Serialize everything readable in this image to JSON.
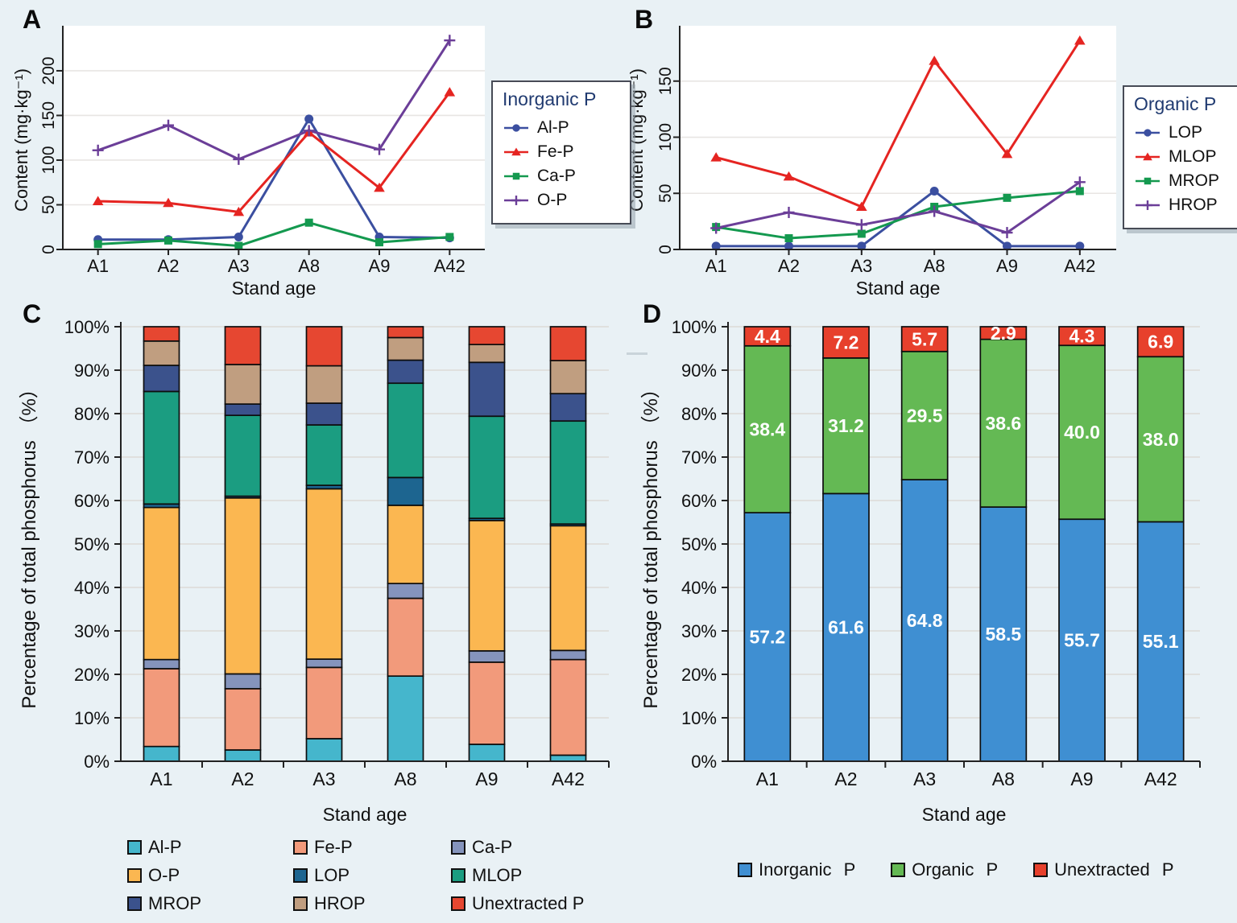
{
  "figure_background": "#e9f1f5",
  "plot_background": "#ffffff",
  "chart_data": [
    {
      "type": "line",
      "panel_label": "A",
      "legend_title": "Inorganic P",
      "legend_position": "right",
      "categories": [
        "A1",
        "A2",
        "A3",
        "A8",
        "A9",
        "A42"
      ],
      "xlabel": "Stand age",
      "ylabel": "Content (mg·kg⁻¹)",
      "ylim": [
        0,
        245
      ],
      "ytick_values": [
        0,
        50,
        100,
        150,
        200
      ],
      "ytick_labels": [
        "0",
        "50",
        "100",
        "150",
        "200"
      ],
      "grid": true,
      "series": [
        {
          "name": "Al-P",
          "marker": "circle",
          "color": "#3b4fa0",
          "values": [
            11,
            11,
            14,
            146,
            14,
            13
          ]
        },
        {
          "name": "Fe-P",
          "marker": "triangle",
          "color": "#e52421",
          "values": [
            54,
            52,
            42,
            131,
            69,
            176
          ]
        },
        {
          "name": "Ca-P",
          "marker": "square",
          "color": "#14994f",
          "values": [
            6,
            10,
            4,
            30,
            8,
            14
          ]
        },
        {
          "name": "O-P",
          "marker": "plus",
          "color": "#6b3e98",
          "values": [
            111,
            139,
            101,
            133,
            112,
            234
          ]
        }
      ]
    },
    {
      "type": "line",
      "panel_label": "B",
      "legend_title": "Organic P",
      "legend_position": "right",
      "categories": [
        "A1",
        "A2",
        "A3",
        "A8",
        "A9",
        "A42"
      ],
      "xlabel": "Stand age",
      "ylabel": "Content (mg·kg⁻¹)",
      "ylim": [
        0,
        195
      ],
      "ytick_values": [
        0,
        50,
        100,
        150
      ],
      "ytick_labels": [
        "0",
        "50",
        "100",
        "150"
      ],
      "grid": true,
      "series": [
        {
          "name": "LOP",
          "marker": "circle",
          "color": "#3b4fa0",
          "values": [
            3,
            3,
            3,
            52,
            3,
            3
          ]
        },
        {
          "name": "MLOP",
          "marker": "triangle",
          "color": "#e52421",
          "values": [
            82,
            65,
            38,
            168,
            85,
            186
          ]
        },
        {
          "name": "MROP",
          "marker": "square",
          "color": "#14994f",
          "values": [
            20,
            10,
            14,
            38,
            46,
            52
          ]
        },
        {
          "name": "HROP",
          "marker": "plus",
          "color": "#6b3e98",
          "values": [
            19,
            33,
            22,
            34,
            15,
            60
          ]
        }
      ]
    },
    {
      "type": "bar",
      "stacked": true,
      "panel_label": "C",
      "categories": [
        "A1",
        "A2",
        "A3",
        "A8",
        "A9",
        "A42"
      ],
      "xlabel": "Stand age",
      "ylabel": "Percentage of total phosphorus （%）",
      "ylim": [
        0,
        100
      ],
      "ytick_values": [
        0,
        10,
        20,
        30,
        40,
        50,
        60,
        70,
        80,
        90,
        100
      ],
      "ytick_labels": [
        "0%",
        "10%",
        "20%",
        "30%",
        "40%",
        "50%",
        "60%",
        "70%",
        "80%",
        "90%",
        "100%"
      ],
      "grid": true,
      "legend_position": "bottom-grid",
      "series": [
        {
          "name": "Al-P",
          "color": "#45b6cc",
          "values": [
            3.4,
            2.6,
            5.2,
            19.6,
            3.9,
            1.4
          ]
        },
        {
          "name": "Fe-P",
          "color": "#f29a7b",
          "values": [
            17.9,
            14.1,
            16.4,
            17.9,
            18.9,
            22.0
          ]
        },
        {
          "name": "Ca-P",
          "color": "#8594bc",
          "values": [
            2.1,
            3.4,
            1.9,
            3.4,
            2.6,
            2.1
          ]
        },
        {
          "name": "O-P",
          "color": "#fbb751",
          "values": [
            35.0,
            40.5,
            39.2,
            18.0,
            30.0,
            28.7
          ]
        },
        {
          "name": "LOP",
          "color": "#1d6590",
          "values": [
            0.8,
            0.4,
            0.8,
            6.4,
            0.5,
            0.4
          ]
        },
        {
          "name": "MLOP",
          "color": "#1b9d81",
          "values": [
            25.9,
            18.6,
            13.9,
            21.7,
            23.5,
            23.7
          ]
        },
        {
          "name": "MROP",
          "color": "#3b528c",
          "values": [
            6.0,
            2.6,
            5.0,
            5.3,
            12.4,
            6.3
          ]
        },
        {
          "name": "HROP",
          "color": "#c09e80",
          "values": [
            5.6,
            9.1,
            8.6,
            5.2,
            4.1,
            7.6
          ]
        },
        {
          "name": "Unextracted P",
          "color": "#e64731",
          "values": [
            3.3,
            8.7,
            9.0,
            2.5,
            4.1,
            7.8
          ]
        }
      ]
    },
    {
      "type": "bar",
      "stacked": true,
      "panel_label": "D",
      "categories": [
        "A1",
        "A2",
        "A3",
        "A8",
        "A9",
        "A42"
      ],
      "xlabel": "Stand age",
      "ylabel": "Percentage of total phosphorus （%）",
      "ylim": [
        0,
        100
      ],
      "ytick_values": [
        0,
        10,
        20,
        30,
        40,
        50,
        60,
        70,
        80,
        90,
        100
      ],
      "ytick_labels": [
        "0%",
        "10%",
        "20%",
        "30%",
        "40%",
        "50%",
        "60%",
        "70%",
        "80%",
        "90%",
        "100%"
      ],
      "grid": true,
      "show_segment_labels": true,
      "segment_label_color": "#ffffff",
      "legend_position": "bottom-row",
      "series": [
        {
          "name": "Inorganic P",
          "color": "#3f8fd2",
          "values": [
            57.2,
            61.6,
            64.8,
            58.5,
            55.7,
            55.1
          ],
          "value_labels": [
            "57.2",
            "61.6",
            "64.8",
            "58.5",
            "55.7",
            "55.1"
          ]
        },
        {
          "name": "Organic P",
          "color": "#64b954",
          "values": [
            38.4,
            31.2,
            29.5,
            38.6,
            40.0,
            38.0
          ],
          "value_labels": [
            "38.4",
            "31.2",
            "29.5",
            "38.6",
            "40.0",
            "38.0"
          ]
        },
        {
          "name": "Unextracted P",
          "color": "#e7402c",
          "values": [
            4.4,
            7.2,
            5.7,
            2.9,
            4.3,
            6.9
          ],
          "value_labels": [
            "4.4",
            "7.2",
            "5.7",
            "2.9",
            "4.3",
            "6.9"
          ]
        }
      ]
    }
  ]
}
